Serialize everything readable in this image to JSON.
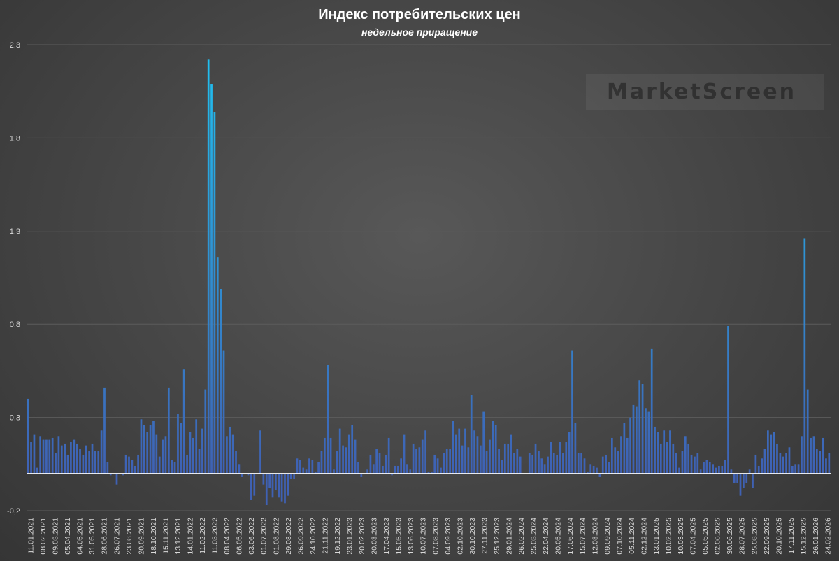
{
  "chart_data": {
    "type": "bar",
    "title": "Индекс потребительских цен",
    "subtitle": "недельное приращение",
    "watermark": "MarketScreen",
    "ylim": [
      -0.2,
      2.3
    ],
    "y_ticks": [
      -0.2,
      0.3,
      0.8,
      1.3,
      1.8,
      2.3
    ],
    "y_tick_labels": [
      "-0,2",
      "0,3",
      "0,8",
      "1,3",
      "1,8",
      "2,3"
    ],
    "grid": "horizontal",
    "reference_line": 0.094,
    "x_tick_labels": [
      "11.01.2021",
      "08.02.2021",
      "09.03.2021",
      "05.04.2021",
      "04.05.2021",
      "31.05.2021",
      "28.06.2021",
      "26.07.2021",
      "23.08.2021",
      "20.09.2021",
      "18.10.2021",
      "15.11.2021",
      "13.12.2021",
      "14.01.2022",
      "11.02.2022",
      "11.03.2022",
      "08.04.2022",
      "06.05.2022",
      "03.06.2022",
      "01.07.2022",
      "01.08.2022",
      "29.08.2022",
      "26.09.2022",
      "24.10.2022",
      "21.11.2022",
      "19.12.2022",
      "23.01.2023",
      "20.02.2023",
      "20.03.2023",
      "17.04.2023",
      "15.05.2023",
      "13.06.2023",
      "10.07.2023",
      "07.08.2023",
      "04.09.2023",
      "02.10.2023",
      "30.10.2023",
      "27.11.2023",
      "25.12.2023",
      "29.01.2024",
      "26.02.2024",
      "25.03.2024",
      "22.04.2024",
      "20.05.2024",
      "17.06.2024",
      "15.07.2024",
      "12.08.2024",
      "09.09.2024",
      "07.10.2024",
      "05.11.2024",
      "02.12.2024",
      "13.01.2025",
      "10.02.2025",
      "10.03.2025",
      "07.04.2025",
      "05.05.2025",
      "02.06.2025",
      "30.06.2025",
      "28.07.2025",
      "25.08.2025",
      "22.09.2025",
      "20.10.2025",
      "17.11.2025",
      "15.12.2025",
      "26.01.2026",
      "24.02.2026"
    ],
    "values": [
      0.4,
      0.17,
      0.21,
      0.03,
      0.2,
      0.18,
      0.18,
      0.18,
      0.19,
      0.11,
      0.2,
      0.15,
      0.16,
      0.1,
      0.17,
      0.18,
      0.16,
      0.13,
      0.1,
      0.15,
      0.12,
      0.16,
      0.12,
      0.12,
      0.23,
      0.46,
      0.06,
      -0.01,
      0.0,
      -0.06,
      0.0,
      -0.01,
      0.1,
      0.09,
      0.07,
      0.04,
      0.1,
      0.29,
      0.26,
      0.22,
      0.26,
      0.28,
      0.21,
      0.09,
      0.18,
      0.2,
      0.46,
      0.07,
      0.06,
      0.32,
      0.27,
      0.56,
      0.1,
      0.22,
      0.19,
      0.29,
      0.13,
      0.24,
      0.45,
      2.22,
      2.09,
      1.94,
      1.16,
      0.99,
      0.66,
      0.2,
      0.25,
      0.21,
      0.12,
      0.05,
      -0.02,
      0.0,
      -0.01,
      -0.14,
      -0.12,
      0.0,
      0.23,
      -0.06,
      -0.17,
      -0.08,
      -0.13,
      -0.09,
      -0.13,
      -0.15,
      -0.16,
      -0.12,
      -0.03,
      -0.03,
      0.08,
      0.07,
      0.03,
      0.02,
      0.08,
      0.07,
      0.01,
      0.06,
      0.12,
      0.19,
      0.58,
      0.19,
      0.02,
      0.12,
      0.24,
      0.15,
      0.14,
      0.21,
      0.26,
      0.18,
      0.06,
      -0.02,
      0.0,
      0.02,
      0.1,
      0.05,
      0.13,
      0.11,
      0.04,
      0.1,
      0.19,
      -0.01,
      0.04,
      0.04,
      0.08,
      0.21,
      0.05,
      0.02,
      0.16,
      0.13,
      0.14,
      0.18,
      0.23,
      0.01,
      0.01,
      0.1,
      0.08,
      0.03,
      0.11,
      0.13,
      0.13,
      0.28,
      0.21,
      0.24,
      0.15,
      0.24,
      0.14,
      0.42,
      0.23,
      0.2,
      0.15,
      0.33,
      0.12,
      0.18,
      0.28,
      0.26,
      0.13,
      0.07,
      0.16,
      0.16,
      0.21,
      0.11,
      0.13,
      0.09,
      0.0,
      0.0,
      0.11,
      0.1,
      0.16,
      0.12,
      0.08,
      0.05,
      0.09,
      0.17,
      0.11,
      0.1,
      0.17,
      0.11,
      0.17,
      0.22,
      0.66,
      0.27,
      0.11,
      0.11,
      0.08,
      0.01,
      0.05,
      0.04,
      0.03,
      -0.02,
      0.09,
      0.1,
      0.06,
      0.19,
      0.14,
      0.12,
      0.2,
      0.27,
      0.19,
      0.3,
      0.37,
      0.36,
      0.5,
      0.48,
      0.35,
      0.33,
      0.67,
      0.25,
      0.22,
      0.16,
      0.23,
      0.17,
      0.23,
      0.16,
      0.11,
      0.03,
      0.12,
      0.2,
      0.16,
      0.1,
      0.09,
      0.11,
      0.02,
      0.06,
      0.07,
      0.06,
      0.05,
      0.03,
      0.04,
      0.04,
      0.07,
      0.79,
      0.02,
      -0.05,
      -0.05,
      -0.12,
      -0.08,
      -0.05,
      0.02,
      -0.08,
      0.1,
      0.04,
      0.08,
      0.13,
      0.23,
      0.21,
      0.22,
      0.16,
      0.11,
      0.09,
      0.11,
      0.14,
      0.04,
      0.05,
      0.05,
      0.2,
      1.26,
      0.45,
      0.19,
      0.2,
      0.13,
      0.12,
      0.19,
      0.08,
      0.11
    ],
    "colors": {
      "bar_top": "#1fc3f3",
      "bar_bottom": "#3f61b4",
      "grid": "#5c5c5c",
      "zero_line": "#ffffff",
      "reference_line": "#d02828",
      "text": "#d9d9d9"
    }
  }
}
